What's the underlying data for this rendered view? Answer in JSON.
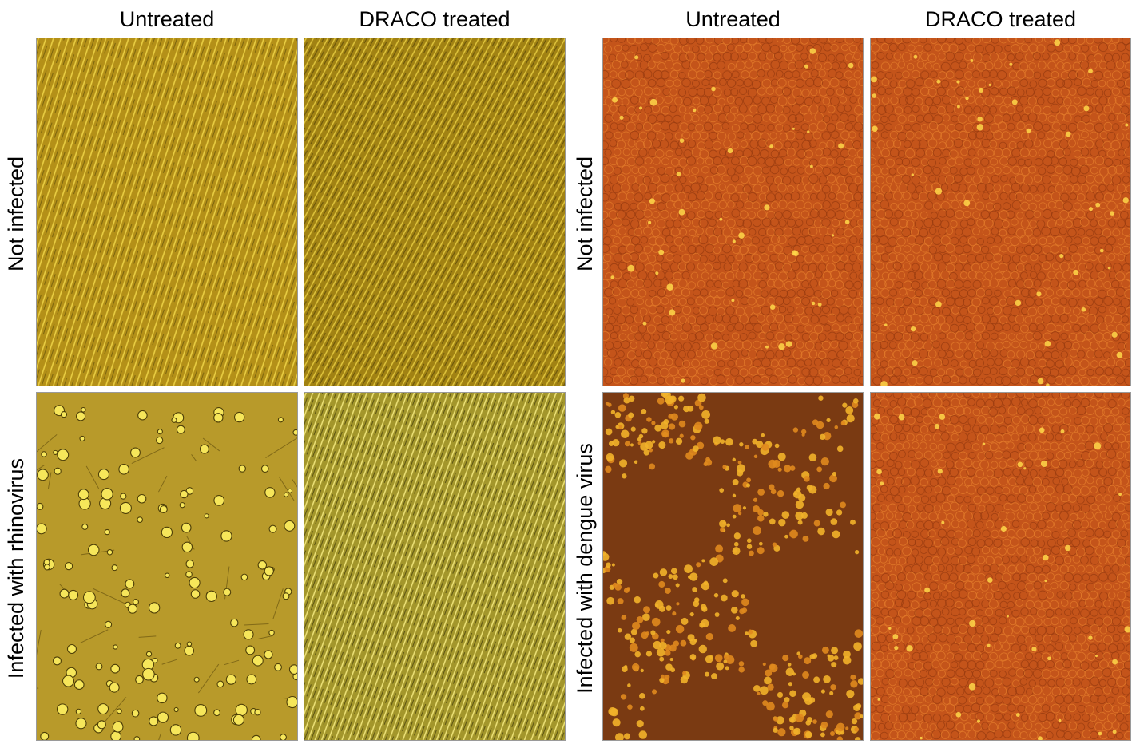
{
  "left_figure": {
    "columns": [
      "Untreated",
      "DRACO treated"
    ],
    "rows": [
      "Not infected",
      "Infected with rhinovirus"
    ],
    "colors": {
      "not_infected": "#b8961a",
      "infected_untreated": "#b59a2a",
      "treated_infected": "#a89a2c",
      "cell_highlight": "#f6e65a"
    }
  },
  "right_figure": {
    "columns": [
      "Untreated",
      "DRACO treated"
    ],
    "rows": [
      "Not infected",
      "Infected with dengue virus"
    ],
    "colors": {
      "base": "#c4541a",
      "infected_dark": "#7a3a12",
      "infected_bright": "#f2b22a",
      "cell_highlight": "#ffd84a"
    }
  }
}
